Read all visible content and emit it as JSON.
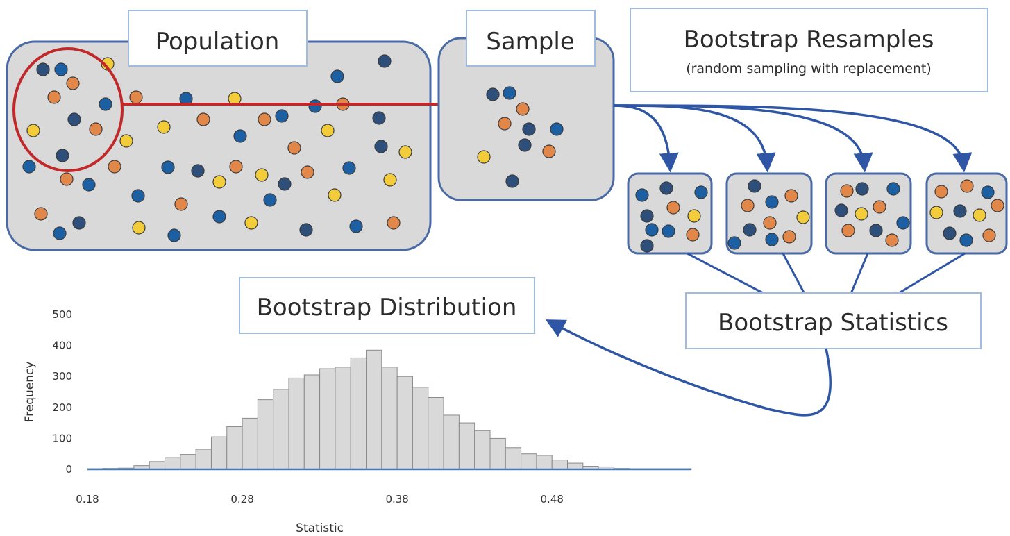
{
  "colors": {
    "dot_navy": "#2e4f7a",
    "dot_blue": "#1d5fa3",
    "dot_orange": "#e2874a",
    "dot_yellow": "#f2cc3a",
    "box_fill": "#d9d9d9",
    "box_stroke": "#4a6aa6",
    "red_arrow": "#c0282a",
    "blue_arrow": "#2f55a5",
    "bar_fill": "#d9d9d9"
  },
  "labels": {
    "population": "Population",
    "sample": "Sample",
    "resamples_title": "Bootstrap Resamples",
    "resamples_subtitle": "(random sampling with replacement)",
    "distribution": "Bootstrap Distribution",
    "statistics": "Bootstrap Statistics"
  },
  "chart_data": {
    "type": "bar",
    "title": "",
    "xlabel": "Statistic",
    "ylabel": "Frequency",
    "xlim": [
      0.18,
      0.57
    ],
    "ylim": [
      0,
      500
    ],
    "xticks": [
      0.18,
      0.28,
      0.38,
      0.48
    ],
    "yticks": [
      0,
      100,
      200,
      300,
      400,
      500
    ],
    "bin_width": 0.01,
    "bin_starts": [
      0.18,
      0.19,
      0.2,
      0.21,
      0.22,
      0.23,
      0.24,
      0.25,
      0.26,
      0.27,
      0.28,
      0.29,
      0.3,
      0.31,
      0.32,
      0.33,
      0.34,
      0.35,
      0.36,
      0.37,
      0.38,
      0.39,
      0.4,
      0.41,
      0.42,
      0.43,
      0.44,
      0.45,
      0.46,
      0.47,
      0.48,
      0.49,
      0.5,
      0.51,
      0.52,
      0.53,
      0.54,
      0.55,
      0.56
    ],
    "values": [
      2,
      3,
      4,
      12,
      25,
      38,
      48,
      65,
      105,
      138,
      165,
      225,
      258,
      295,
      305,
      325,
      330,
      360,
      385,
      330,
      300,
      265,
      232,
      175,
      150,
      125,
      100,
      70,
      50,
      45,
      30,
      20,
      10,
      8,
      3,
      2,
      2,
      1,
      1
    ]
  }
}
